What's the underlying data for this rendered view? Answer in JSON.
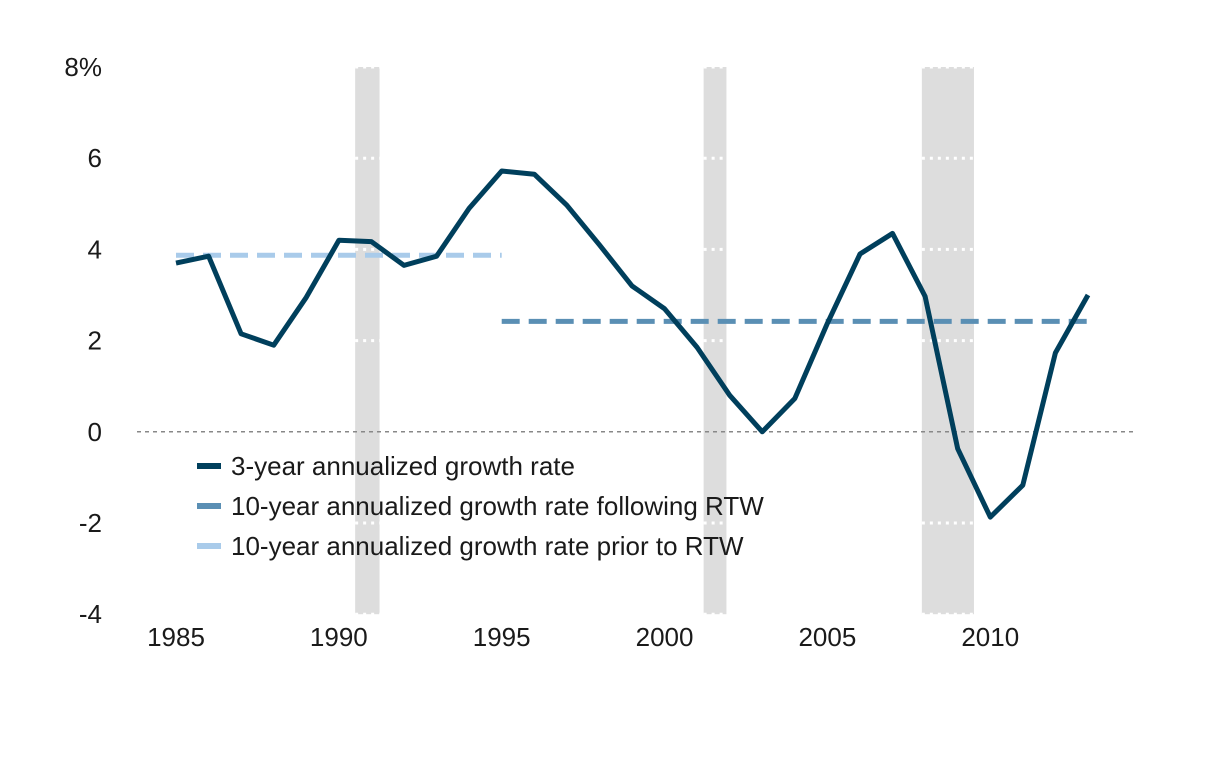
{
  "chart_data": {
    "type": "line",
    "title": "",
    "xlabel": "",
    "ylabel": "",
    "xlim": [
      1983.2,
      2014.4
    ],
    "ylim": [
      -4,
      8
    ],
    "x_ticks": [
      1985,
      1990,
      1995,
      2000,
      2005,
      2010
    ],
    "x_tick_labels": [
      "1985",
      "1990",
      "1995",
      "2000",
      "2005",
      "2010"
    ],
    "y_ticks": [
      -4,
      -2,
      0,
      2,
      4,
      6,
      8
    ],
    "y_tick_labels": [
      "-4",
      "-2",
      "0",
      "2",
      "4",
      "6",
      "8%"
    ],
    "grid": false,
    "zero_line": true,
    "recession_shading": [
      {
        "start": 1990.5,
        "end": 1991.25
      },
      {
        "start": 2001.2,
        "end": 2001.9
      },
      {
        "start": 2007.9,
        "end": 2009.5
      }
    ],
    "legend_position": "bottom-left",
    "series": [
      {
        "name": "3-year annualized growth rate",
        "style": "solid",
        "color": "#003f5c",
        "x": [
          1985,
          1986,
          1987,
          1988,
          1989,
          1990,
          1991,
          1992,
          1993,
          1994,
          1995,
          1996,
          1997,
          1998,
          1999,
          2000,
          2001,
          2002,
          2003,
          2004,
          2005,
          2006,
          2007,
          2008,
          2009,
          2010,
          2011,
          2012,
          2013
        ],
        "y": [
          3.7,
          3.85,
          2.15,
          1.9,
          2.95,
          4.2,
          4.17,
          3.65,
          3.85,
          4.9,
          5.72,
          5.65,
          4.97,
          4.1,
          3.2,
          2.7,
          1.85,
          0.8,
          0.0,
          0.73,
          2.38,
          3.9,
          4.35,
          2.97,
          -0.37,
          -1.87,
          -1.17,
          1.73,
          3.0
        ]
      },
      {
        "name": "10-year annualized growth rate following RTW",
        "style": "dashed",
        "color": "#5a8fb4",
        "x": [
          1995,
          2013
        ],
        "y": [
          2.42,
          2.42
        ]
      },
      {
        "name": "10-year annualized growth rate prior to RTW",
        "style": "dashed",
        "color": "#a9cbea",
        "x": [
          1985,
          1995
        ],
        "y": [
          3.87,
          3.87
        ]
      }
    ]
  },
  "colors": {
    "recession": "#dddddd",
    "zero_line": "#888888"
  }
}
